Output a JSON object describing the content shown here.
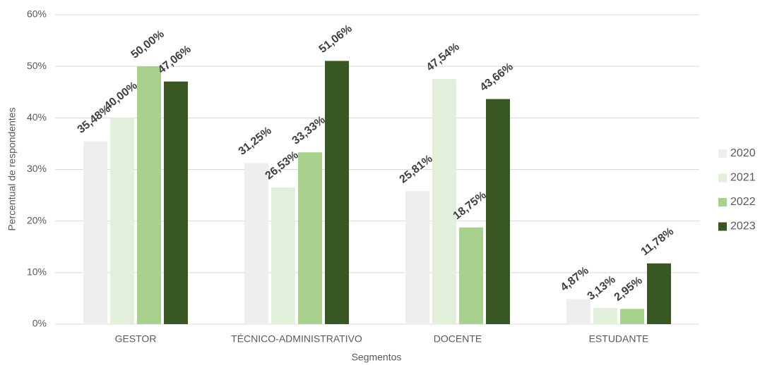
{
  "chart_data": {
    "type": "bar",
    "x_label": "Segmentos",
    "y_label": "Percentual de respondentes",
    "categories": [
      "GESTOR",
      "TÉCNICO-ADMINISTRATIVO",
      "DOCENTE",
      "ESTUDANTE"
    ],
    "series": [
      {
        "name": "2020",
        "color": "#eeeeee",
        "values": [
          35.48,
          31.25,
          25.81,
          4.87
        ],
        "value_labels": [
          "35,48%",
          "31,25%",
          "25,81%",
          "4,87%"
        ]
      },
      {
        "name": "2021",
        "color": "#e2efda",
        "values": [
          40.0,
          26.53,
          47.54,
          3.13
        ],
        "value_labels": [
          "40,00%",
          "26,53%",
          "47,54%",
          "3,13%"
        ]
      },
      {
        "name": "2022",
        "color": "#a9d18e",
        "values": [
          50.0,
          33.33,
          18.75,
          2.95
        ],
        "value_labels": [
          "50,00%",
          "33,33%",
          "18,75%",
          "2,95%"
        ]
      },
      {
        "name": "2023",
        "color": "#385723",
        "values": [
          47.06,
          51.06,
          43.66,
          11.78
        ],
        "value_labels": [
          "47,06%",
          "51,06%",
          "43,66%",
          "11,78%"
        ]
      }
    ],
    "ylim": [
      0,
      60
    ],
    "yticks": [
      {
        "value": 0,
        "label": "0%"
      },
      {
        "value": 10,
        "label": "10%"
      },
      {
        "value": 20,
        "label": "20%"
      },
      {
        "value": 30,
        "label": "30%"
      },
      {
        "value": 40,
        "label": "40%"
      },
      {
        "value": 50,
        "label": "50%"
      },
      {
        "value": 60,
        "label": "60%"
      }
    ],
    "grid": true,
    "legend": "right"
  }
}
